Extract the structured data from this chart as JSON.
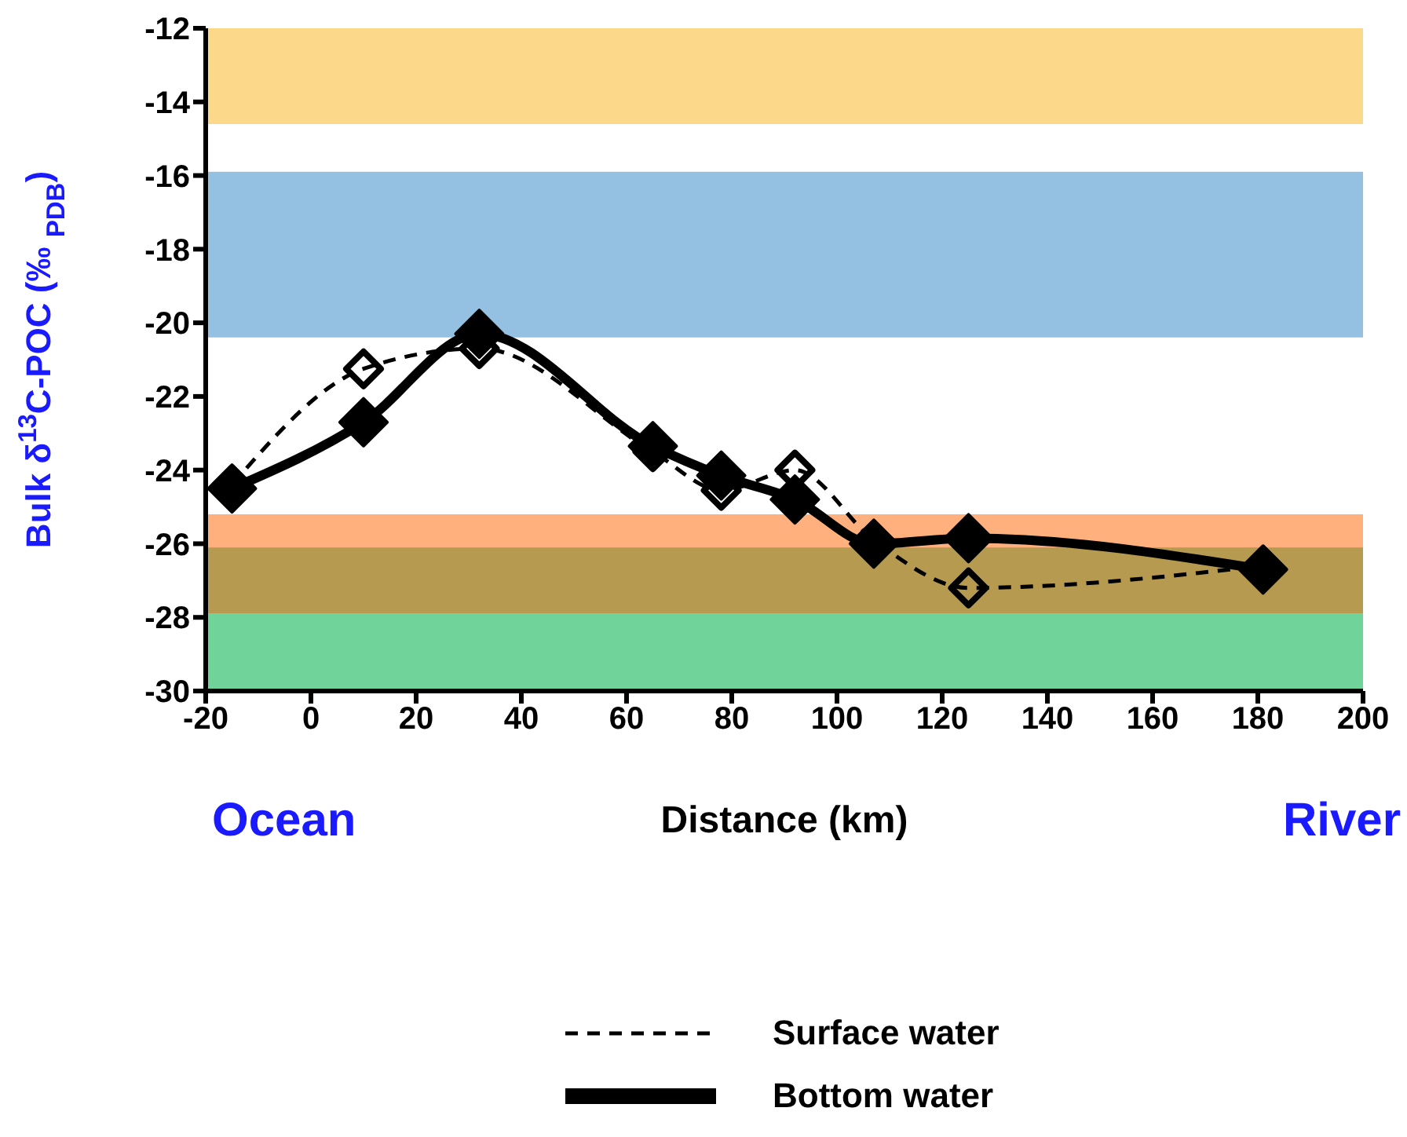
{
  "chart_data": {
    "type": "line",
    "xlabel": "Distance (km)",
    "ylabel": "Bulk δ$^{13}$C-POC (‰ $_{PDB}$)",
    "x": [
      -15,
      10,
      32,
      65,
      78,
      92,
      107,
      125,
      181
    ],
    "series": [
      {
        "name": "Surface water",
        "color": "#000000",
        "line_style": "dashed",
        "values": [
          -24.4,
          -21.25,
          -20.7,
          -23.5,
          -24.55,
          -24.0,
          -25.9,
          -27.2,
          -26.6
        ]
      },
      {
        "name": "Bottom water",
        "color": "#000000",
        "line_style": "solid",
        "values": [
          -24.5,
          -22.7,
          -20.3,
          -23.35,
          -24.15,
          -24.8,
          -26.0,
          -25.85,
          -26.7
        ]
      }
    ],
    "marker": "diamond",
    "xlim": [
      -20,
      200
    ],
    "xticks": [
      -20,
      0,
      20,
      40,
      60,
      80,
      100,
      120,
      140,
      160,
      180,
      200
    ],
    "ylim": [
      -30,
      -12
    ],
    "yticks": [
      -30,
      -28,
      -26,
      -24,
      -22,
      -20,
      -18,
      -16,
      -14,
      -12
    ],
    "bands": [
      {
        "axis": "y",
        "from": -14.6,
        "to": -12,
        "color": "#fcd98a"
      },
      {
        "axis": "y",
        "from": -20.4,
        "to": -15.9,
        "color": "#94c0e2"
      },
      {
        "axis": "y",
        "from": -27.9,
        "to": -25.2,
        "color": "#ffb07c"
      },
      {
        "axis": "y",
        "from": -30,
        "to": -27.9,
        "color": "#6fd39a"
      },
      {
        "axis": "y",
        "from": -27.9,
        "to": -26.1,
        "color": "#b59a4f"
      }
    ],
    "annotations": [
      "Ocean",
      "River"
    ],
    "legend": "bottom"
  }
}
